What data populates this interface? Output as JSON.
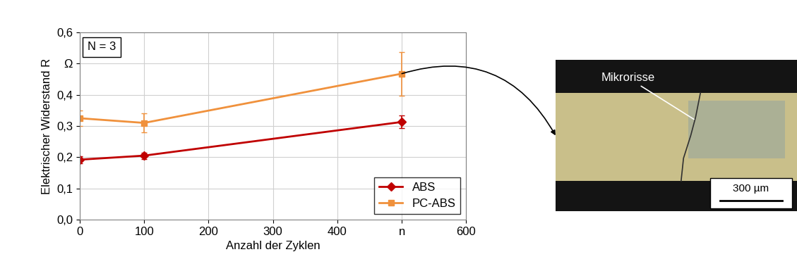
{
  "chart_data": {
    "type": "line",
    "x_label": "Anzahl der Zyklen",
    "y_label": "Elektrischer Widerstand R",
    "annotation": "N = 3",
    "x": [
      0,
      100,
      500
    ],
    "series": [
      {
        "name": "ABS",
        "color": "#c00000",
        "marker": "diamond",
        "values": [
          0.192,
          0.205,
          0.313
        ],
        "errors": [
          0.012,
          0.01,
          0.02
        ]
      },
      {
        "name": "PC-ABS",
        "color": "#f0913c",
        "marker": "square",
        "values": [
          0.325,
          0.31,
          0.468
        ],
        "errors": [
          0.025,
          0.03,
          0.07
        ]
      }
    ],
    "xlim": [
      0,
      600
    ],
    "xticks": [
      0,
      100,
      200,
      300,
      400,
      {
        "value": 500,
        "label": "n"
      },
      600
    ],
    "ylim": [
      0,
      0.6
    ],
    "yticks": [
      {
        "value": 0.0,
        "label": "0,0"
      },
      {
        "value": 0.1,
        "label": "0,1"
      },
      {
        "value": 0.2,
        "label": "0,2"
      },
      {
        "value": 0.3,
        "label": "0,3"
      },
      {
        "value": 0.4,
        "label": "0,4"
      },
      {
        "value": 0.5,
        "label": "Ω"
      },
      {
        "value": 0.6,
        "label": "0,6"
      }
    ],
    "grid": true,
    "legend": "lower right",
    "image": {
      "annotation": "Mikrorisse",
      "scale_bar": "300 µm"
    }
  }
}
